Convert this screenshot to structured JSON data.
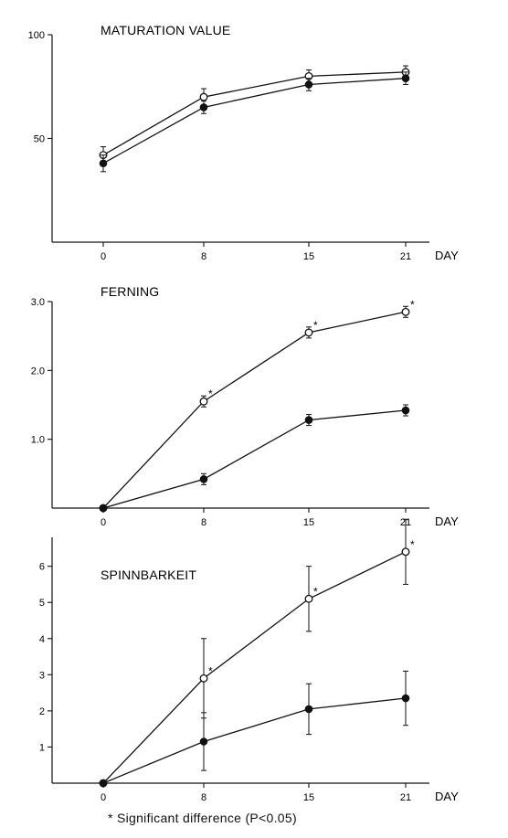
{
  "footnote": "* Significant difference (P<0.05)",
  "chart_data": [
    {
      "type": "line",
      "title": "MATURATION VALUE",
      "xlabel": "DAY",
      "x": [
        0,
        8,
        15,
        21
      ],
      "ylim": [
        0,
        100
      ],
      "yticks": [
        "50",
        "100"
      ],
      "ytick_values": [
        50,
        100
      ],
      "series": [
        {
          "marker": "open",
          "values": [
            42,
            70,
            80,
            82
          ],
          "errors": [
            4,
            4,
            3,
            3
          ],
          "significant": [
            false,
            false,
            false,
            false
          ]
        },
        {
          "marker": "filled",
          "values": [
            38,
            65,
            76,
            79
          ],
          "errors": [
            4,
            3,
            3,
            3
          ],
          "significant": [
            false,
            false,
            false,
            false
          ]
        }
      ]
    },
    {
      "type": "line",
      "title": "FERNING",
      "xlabel": "DAY",
      "x": [
        0,
        8,
        15,
        21
      ],
      "ylim": [
        0,
        3.0
      ],
      "yticks": [
        "1.0",
        "2.0",
        "3.0"
      ],
      "ytick_values": [
        1.0,
        2.0,
        3.0
      ],
      "series": [
        {
          "marker": "open",
          "values": [
            0,
            1.55,
            2.55,
            2.85
          ],
          "errors": [
            0,
            0.08,
            0.08,
            0.08
          ],
          "significant": [
            false,
            true,
            true,
            true
          ]
        },
        {
          "marker": "filled",
          "values": [
            0,
            0.42,
            1.28,
            1.42
          ],
          "errors": [
            0,
            0.08,
            0.08,
            0.08
          ],
          "significant": [
            false,
            false,
            false,
            false
          ]
        }
      ]
    },
    {
      "type": "line",
      "title": "SPINNBARKEIT",
      "xlabel": "DAY",
      "x": [
        0,
        8,
        15,
        21
      ],
      "ylim": [
        0,
        6.8
      ],
      "yticks": [
        "1",
        "2",
        "3",
        "4",
        "5",
        "6"
      ],
      "ytick_values": [
        1,
        2,
        3,
        4,
        5,
        6
      ],
      "series": [
        {
          "marker": "open",
          "values": [
            0,
            2.9,
            5.1,
            6.4
          ],
          "errors": [
            0,
            1.1,
            0.9,
            0.9
          ],
          "significant": [
            false,
            true,
            true,
            true
          ]
        },
        {
          "marker": "filled",
          "values": [
            0,
            1.15,
            2.05,
            2.35
          ],
          "errors": [
            0,
            0.8,
            0.7,
            0.75
          ],
          "significant": [
            false,
            false,
            false,
            false
          ]
        }
      ]
    }
  ]
}
